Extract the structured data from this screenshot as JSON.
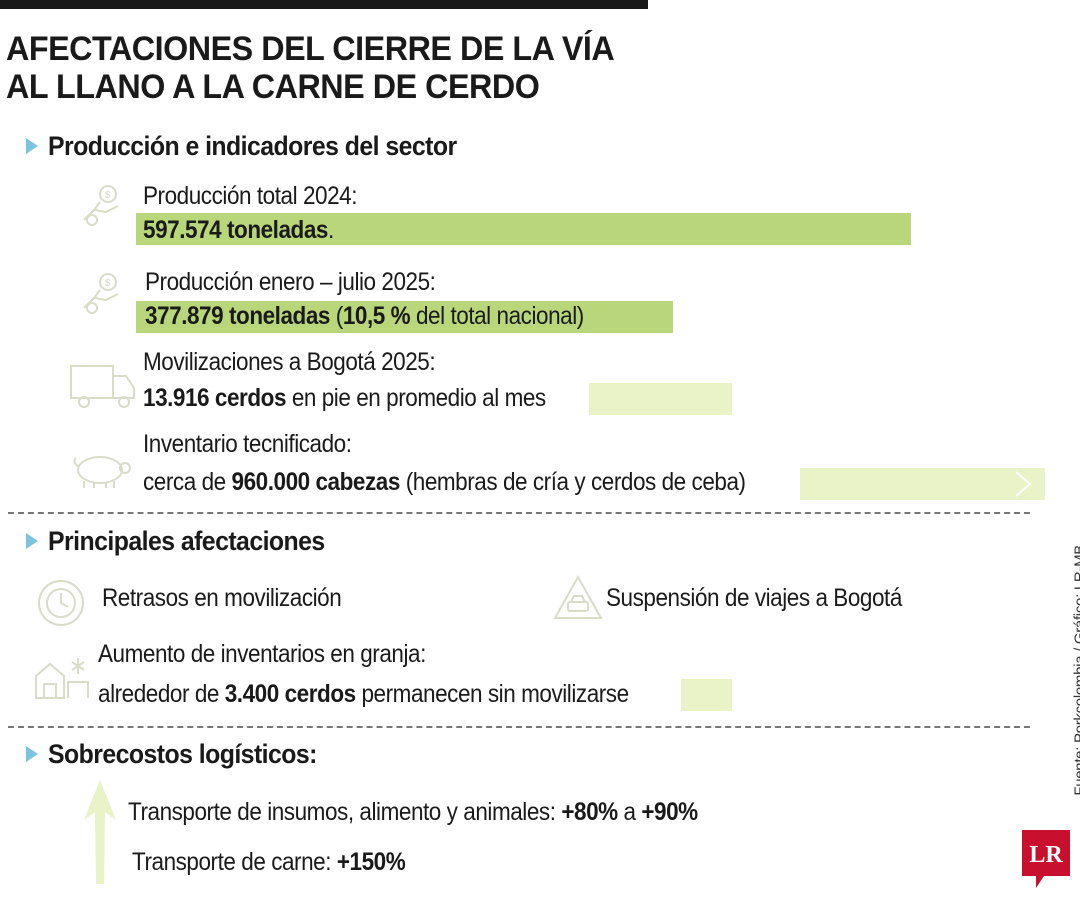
{
  "title": {
    "line1": "AFECTACIONES DEL CIERRE DE LA VÍA",
    "line2": "AL LLANO A LA CARNE DE CERDO"
  },
  "section1": {
    "heading": "Producción e indicadores del sector",
    "rows": [
      {
        "label": "Producción total 2024:",
        "value_bold": "597.574 toneladas",
        "value_rest": ".",
        "bar_fraction": 1.0,
        "icon": "money-hand-icon"
      },
      {
        "label": "Producción enero – julio 2025:",
        "value_bold": "377.879 toneladas",
        "value_mid": " (",
        "value_bold2": "10,5 %",
        "value_rest": " del total nacional)",
        "bar_fraction": 0.7,
        "icon": "money-hand-icon"
      },
      {
        "label": "Movilizaciones a Bogotá 2025:",
        "value_bold": "13.916 cerdos",
        "value_rest": " en pie en promedio al mes",
        "icon": "truck-icon"
      },
      {
        "label": "Inventario tecnificado:",
        "value_pre": "cerca de ",
        "value_bold": "960.000 cabezas",
        "value_rest": " (hembras de cría y cerdos de ceba)",
        "icon": "pig-icon"
      }
    ]
  },
  "section2": {
    "heading": "Principales afectaciones",
    "item1": "Retrasos en movilización",
    "item2": "Suspensión de viajes a Bogotá",
    "item3_label": "Aumento de inventarios en granja:",
    "item3_pre": "alrededor de ",
    "item3_bold": "3.400 cerdos",
    "item3_rest": " permanecen sin movilizarse"
  },
  "section3": {
    "heading": "Sobrecostos logísticos:",
    "line1_text": "Transporte de insumos, alimento y animales: ",
    "line1_bold1": "+80%",
    "line1_mid": " a ",
    "line1_bold2": "+90%",
    "line2_text": "Transporte de carne: ",
    "line2_bold": "+150%"
  },
  "source": "Fuente: Porkcolombia / Gráfico: LR-MB",
  "logo": "LR",
  "colors": {
    "bar_dark": "#b9d67a",
    "bar_light": "#eaf2c8",
    "accent": "#7cc3de",
    "logo_red": "#c8102e"
  }
}
